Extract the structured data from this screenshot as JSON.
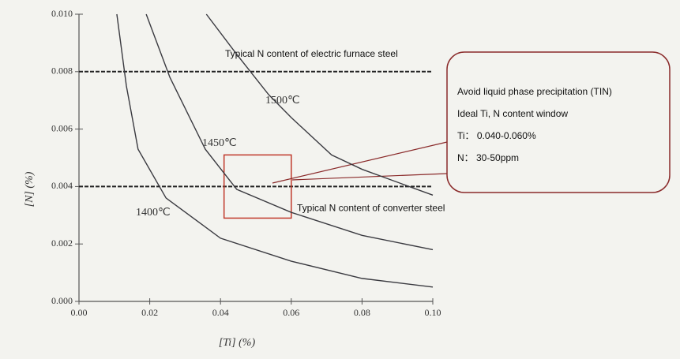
{
  "chart_data": {
    "type": "line",
    "x_label": "[Ti] (%)",
    "y_label": "[N] (%)",
    "xlim": [
      0,
      0.1
    ],
    "ylim": [
      0,
      0.01
    ],
    "xticks": [
      {
        "value": 0,
        "label": "0.00"
      },
      {
        "value": 0.02,
        "label": "0.02"
      },
      {
        "value": 0.04,
        "label": "0.04"
      },
      {
        "value": 0.06,
        "label": "0.06"
      },
      {
        "value": 0.08,
        "label": "0.08"
      },
      {
        "value": 0.1,
        "label": "0.10"
      }
    ],
    "yticks": [
      {
        "value": 0,
        "label": "0.000"
      },
      {
        "value": 0.002,
        "label": "0.002"
      },
      {
        "value": 0.004,
        "label": "0.004"
      },
      {
        "value": 0.006,
        "label": "0.006"
      },
      {
        "value": 0.008,
        "label": "0.008"
      },
      {
        "value": 0.01,
        "label": "0.010"
      }
    ],
    "series": [
      {
        "name": "1400℃",
        "color": "#3a3a40",
        "x": [
          0.0107,
          0.0134,
          0.0167,
          0.0246,
          0.04,
          0.06,
          0.08,
          0.1
        ],
        "values": [
          0.01,
          0.0075,
          0.0053,
          0.0036,
          0.0022,
          0.0014,
          0.0008,
          0.0005
        ]
      },
      {
        "name": "1450℃",
        "color": "#3a3a40",
        "x": [
          0.019,
          0.0257,
          0.0357,
          0.0446,
          0.06,
          0.08,
          0.1
        ],
        "values": [
          0.01,
          0.0078,
          0.0053,
          0.0039,
          0.0031,
          0.0023,
          0.0018
        ]
      },
      {
        "name": "1500℃",
        "color": "#3a3a40",
        "x": [
          0.036,
          0.0446,
          0.0536,
          0.06,
          0.0714,
          0.08,
          0.1
        ],
        "values": [
          0.01,
          0.0086,
          0.0072,
          0.0064,
          0.0051,
          0.0046,
          0.0037
        ]
      }
    ],
    "reference_lines": [
      {
        "value": 0.008,
        "label": "Typical N content of electric furnace steel"
      },
      {
        "value": 0.004,
        "label": "Typical N content of converter steel"
      }
    ],
    "highlight_box": {
      "x": [
        0.041,
        0.06
      ],
      "y": [
        0.0029,
        0.0051
      ],
      "color": "#c0392b"
    },
    "callout": [
      "Avoid liquid phase precipitation (TIN)",
      "Ideal Ti, N content window",
      "Ti： 0.040-0.060%",
      "N： 30-50ppm"
    ]
  }
}
